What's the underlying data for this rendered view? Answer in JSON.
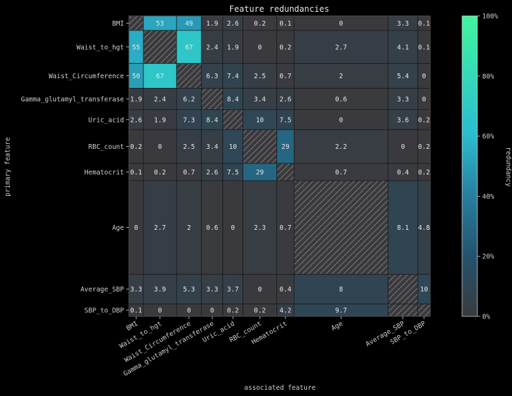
{
  "chart_data": {
    "type": "heatmap",
    "title": "Feature redundancies",
    "xlabel": "associated feature",
    "ylabel": "primary feature",
    "colorbar_label": "redundancy",
    "colorbar_ticks": [
      "0%",
      "20%",
      "40%",
      "60%",
      "80%",
      "100%"
    ],
    "colorbar_range": [
      0,
      100
    ],
    "colors": {
      "low": "#3a3a3e",
      "mid_low": "#23536d",
      "mid": "#2bbbd0",
      "high": "#40f59c",
      "diagonal_hatch": "#777777",
      "background": "#000000"
    },
    "features": [
      "BMI",
      "Waist_to_hgt",
      "Waist_Circumference",
      "Gamma_glutamyl_transferase",
      "Uric_acid",
      "RBC_count",
      "Hematocrit",
      "Age",
      "Average_SBP",
      "SBP_to_DBP"
    ],
    "feature_weights": [
      21,
      48,
      36,
      31,
      29,
      49,
      25,
      136,
      43,
      18
    ],
    "values": [
      [
        "",
        "53",
        "49",
        "1.9",
        "2.6",
        "0.2",
        "0.1",
        "0",
        "3.3",
        "0.1"
      ],
      [
        "55",
        "",
        "67",
        "2.4",
        "1.9",
        "0",
        "0.2",
        "2.7",
        "4.1",
        "0.1"
      ],
      [
        "50",
        "67",
        "",
        "6.3",
        "7.4",
        "2.5",
        "0.7",
        "2",
        "5.4",
        "0"
      ],
      [
        "1.9",
        "2.4",
        "6.2",
        "",
        "8.4",
        "3.4",
        "2.6",
        "0.6",
        "3.3",
        "0"
      ],
      [
        "2.6",
        "1.9",
        "7.3",
        "8.4",
        "",
        "10",
        "7.5",
        "0",
        "3.6",
        "0.2"
      ],
      [
        "0.2",
        "0",
        "2.5",
        "3.4",
        "10",
        "",
        "29",
        "2.2",
        "0",
        "0.2"
      ],
      [
        "0.1",
        "0.2",
        "0.7",
        "2.6",
        "7.5",
        "29",
        "",
        "0.7",
        "0.4",
        "0.2"
      ],
      [
        "0",
        "2.7",
        "2",
        "0.6",
        "0",
        "2.3",
        "0.7",
        "",
        "8.1",
        "4.8"
      ],
      [
        "3.3",
        "3.9",
        "5.3",
        "3.3",
        "3.7",
        "0",
        "0.4",
        "8",
        "",
        "10"
      ],
      [
        "0.1",
        "0",
        "0",
        "0",
        "0.2",
        "0.2",
        "4.2",
        "9.7",
        "",
        ""
      ]
    ]
  }
}
